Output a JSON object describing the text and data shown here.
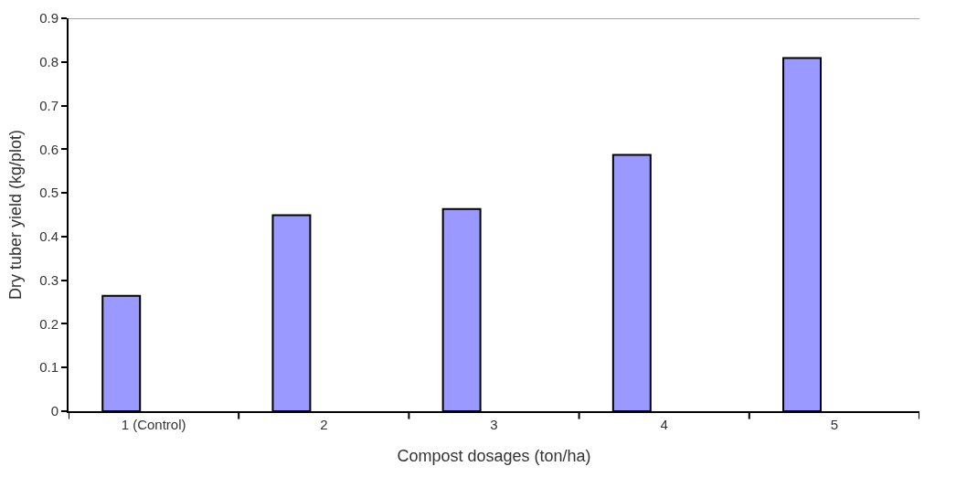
{
  "chart_data": {
    "type": "bar",
    "xlabel": "Compost dosages (ton/ha)",
    "ylabel": "Dry tuber yield (kg/plot)",
    "categories": [
      "1 (Control)",
      "2",
      "3",
      "4",
      "5"
    ],
    "values": [
      0.264,
      0.449,
      0.463,
      0.587,
      0.809
    ],
    "color": "#9999ff",
    "ylim": [
      0,
      0.9
    ],
    "yticks": [
      0,
      0.1,
      0.2,
      0.3,
      0.4,
      0.5,
      0.6,
      0.7,
      0.8,
      0.9
    ]
  }
}
